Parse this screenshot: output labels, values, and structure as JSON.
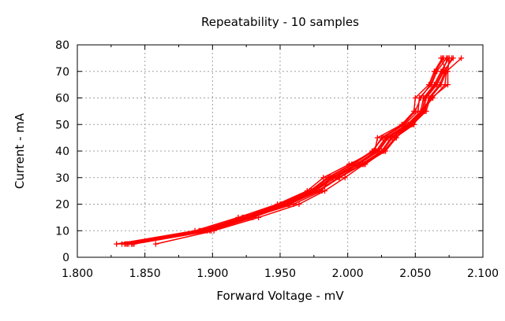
{
  "chart_data": {
    "type": "line",
    "title": "Repeatability - 10 samples",
    "xlabel": "Forward Voltage - mV",
    "ylabel": "Current - mA",
    "xlim": [
      1.8,
      2.1
    ],
    "ylim": [
      0,
      80
    ],
    "xticks": [
      "1.800",
      "1.850",
      "1.900",
      "1.950",
      "2.000",
      "2.050",
      "2.100"
    ],
    "yticks": [
      "0",
      "10",
      "20",
      "30",
      "40",
      "50",
      "60",
      "70",
      "80"
    ],
    "grid": true,
    "legend": "none",
    "color": "#ff0000",
    "marker": "plus",
    "y": [
      5,
      10,
      15,
      20,
      25,
      30,
      35,
      40,
      45,
      50,
      55,
      60,
      65,
      70,
      75
    ],
    "series": [
      {
        "x": [
          1.829,
          1.887,
          1.919,
          1.948,
          1.97,
          1.982,
          2.001,
          2.02,
          2.022,
          2.04,
          2.049,
          2.05,
          2.06,
          2.064,
          2.07
        ]
      },
      {
        "x": [
          1.833,
          1.89,
          1.922,
          1.95,
          1.972,
          1.985,
          2.003,
          2.018,
          2.026,
          2.042,
          2.052,
          2.053,
          2.062,
          2.066,
          2.073
        ]
      },
      {
        "x": [
          1.837,
          1.893,
          1.925,
          1.952,
          1.974,
          1.988,
          2.006,
          2.021,
          2.028,
          2.044,
          2.054,
          2.056,
          2.064,
          2.069,
          2.075
        ]
      },
      {
        "x": [
          1.84,
          1.896,
          1.927,
          1.955,
          1.976,
          1.991,
          2.008,
          2.023,
          2.03,
          2.046,
          2.056,
          2.058,
          2.066,
          2.071,
          2.078
        ]
      },
      {
        "x": [
          1.842,
          1.899,
          1.93,
          1.957,
          1.979,
          1.994,
          2.011,
          2.026,
          2.033,
          2.048,
          2.058,
          2.061,
          2.069,
          2.073,
          2.084
        ]
      },
      {
        "x": [
          1.835,
          1.891,
          1.923,
          1.951,
          1.973,
          1.986,
          2.004,
          2.019,
          2.025,
          2.041,
          2.05,
          2.054,
          2.061,
          2.065,
          2.071
        ]
      },
      {
        "x": [
          1.838,
          1.894,
          1.926,
          1.953,
          1.975,
          1.989,
          2.007,
          2.022,
          2.029,
          2.045,
          2.055,
          2.057,
          2.065,
          2.07,
          2.074
        ]
      },
      {
        "x": [
          1.841,
          1.898,
          1.929,
          1.956,
          1.978,
          1.993,
          2.01,
          2.025,
          2.032,
          2.047,
          2.057,
          2.06,
          2.068,
          2.072,
          2.077
        ]
      },
      {
        "x": [
          1.858,
          1.901,
          1.934,
          1.964,
          1.983,
          1.998,
          2.012,
          2.028,
          2.036,
          2.046,
          2.054,
          2.062,
          2.074,
          2.074,
          2.075
        ]
      },
      {
        "x": [
          1.836,
          1.896,
          1.928,
          1.96,
          1.981,
          1.987,
          2.013,
          2.027,
          2.035,
          2.049,
          2.055,
          2.063,
          2.072,
          2.073,
          2.069
        ]
      }
    ]
  }
}
